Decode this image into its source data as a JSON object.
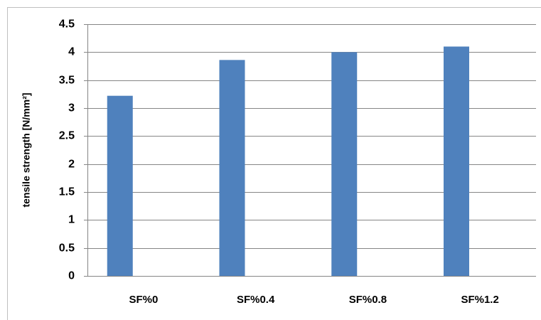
{
  "chart_data": {
    "type": "bar",
    "ylabel": "tensile strength [N/mm²]",
    "categories": [
      "SF%0",
      "SF%0.4",
      "SF%0.8",
      "SF%1.2"
    ],
    "values": [
      3.22,
      3.86,
      4.0,
      4.1
    ],
    "color": "#4f81bd",
    "ylim": [
      0,
      4.5
    ],
    "yticks": [
      0,
      0.5,
      1,
      1.5,
      2,
      2.5,
      3,
      3.5,
      4,
      4.5
    ],
    "grid": true
  }
}
